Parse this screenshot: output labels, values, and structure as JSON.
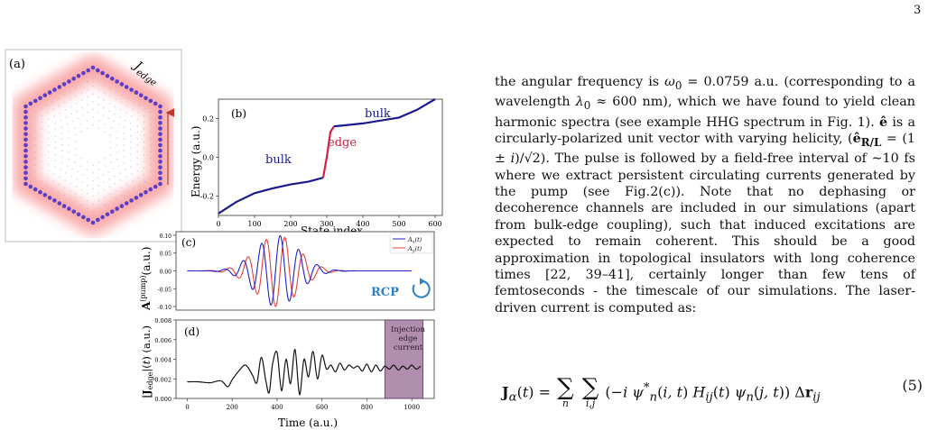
{
  "page_number": "3",
  "figure": {
    "panel_a": {
      "label": "(a)",
      "j_edge": "J",
      "j_edge_sub": "edge"
    },
    "panel_b": {
      "label": "(b)",
      "ylabel": "Energy (a.u.)",
      "xlabel": "State index",
      "yticks": [
        "0.2",
        "0.0",
        "-0.2"
      ],
      "xticks": [
        "0",
        "100",
        "200",
        "300",
        "400",
        "500",
        "600"
      ],
      "bulk_left": "bulk",
      "bulk_right": "bulk",
      "edge": "edge"
    },
    "panel_c": {
      "label": "(c)",
      "ylabel_main": "A",
      "ylabel_sup": "(pump)",
      "ylabel_unit": "(a.u.)",
      "yticks": [
        "0.10",
        "0.05",
        "0.00",
        "-0.05",
        "-0.10"
      ],
      "legend": [
        "A_x(t)",
        "A_y(t)"
      ],
      "rcp": "RCP"
    },
    "panel_d": {
      "label": "(d)",
      "ylabel": "|J_edge|(t) (a.u.)",
      "yticks": [
        "0.008",
        "0.006",
        "0.004",
        "0.002",
        "0.000"
      ],
      "xticks": [
        "0",
        "200",
        "400",
        "600",
        "800",
        "1000"
      ],
      "xlabel": "Time (a.u.)",
      "injection": [
        "Injection",
        "edge",
        "current"
      ]
    }
  },
  "text": {
    "paragraph": "the angular frequency is ω0 = 0.0759 a.u. (corresponding to a wavelength λ0 ≈ 600 nm), which we have found to yield clean harmonic spectra (see example HHG spectrum in Fig. 1). ê is a circularly-polarized unit vector with varying helicity, (ê_R/L = (1 ± i)/√2). The pulse is followed by a field-free interval of ∼10 fs where we extract persistent circulating currents generated by the pump (see Fig.2(c)). Note that no dephasing or decoherence channels are included in our simulations (apart from bulk-edge coupling), such that induced excitations are expected to remain coherent. This should be a good approximation in topological insulators with long coherence times [22, 39–41], certainly longer than few tens of femtoseconds - the timescale of our simulations. The laser-driven current is computed as:"
  },
  "equation": {
    "number": "(5)"
  },
  "chart_data": [
    {
      "type": "line",
      "panel": "b",
      "xlabel": "State index",
      "ylabel": "Energy (a.u.)",
      "xlim": [
        0,
        620
      ],
      "ylim": [
        -0.3,
        0.3
      ],
      "series": [
        {
          "name": "bulk",
          "x": [
            0,
            50,
            100,
            150,
            200,
            250,
            290
          ],
          "y": [
            -0.29,
            -0.23,
            -0.185,
            -0.16,
            -0.14,
            -0.125,
            -0.105
          ]
        },
        {
          "name": "edge",
          "x": [
            290,
            300,
            310,
            320
          ],
          "y": [
            -0.105,
            0.0,
            0.13,
            0.16
          ]
        },
        {
          "name": "bulk",
          "x": [
            320,
            350,
            400,
            450,
            500,
            550,
            600
          ],
          "y": [
            0.16,
            0.165,
            0.175,
            0.19,
            0.205,
            0.245,
            0.3
          ]
        }
      ]
    },
    {
      "type": "line",
      "panel": "c",
      "xlim": [
        -50,
        1100
      ],
      "ylim": [
        -0.11,
        0.11
      ],
      "series": [
        {
          "name": "A_x(t)",
          "color": "#1f1fd0"
        },
        {
          "name": "A_y(t)",
          "color": "#e8413a"
        }
      ],
      "pulse": {
        "center": 400,
        "width": 135,
        "period": 82.8,
        "amplitude": 0.1,
        "end": 800
      }
    },
    {
      "type": "line",
      "panel": "d",
      "xlabel": "Time (a.u.)",
      "xlim": [
        -50,
        1100
      ],
      "ylim": [
        0,
        0.008
      ],
      "x": [
        0,
        50,
        100,
        150,
        180,
        200,
        230,
        260,
        290,
        310,
        330,
        350,
        365,
        380,
        400,
        420,
        440,
        460,
        480,
        500,
        520,
        540,
        560,
        580,
        600,
        620,
        640,
        660,
        680,
        700,
        720,
        740,
        760,
        780,
        800,
        820,
        840,
        860,
        880,
        900,
        920,
        940,
        960,
        980,
        1000,
        1020,
        1040
      ],
      "y": [
        0.0017,
        0.0017,
        0.0016,
        0.0018,
        0.0012,
        0.0019,
        0.0028,
        0.0034,
        0.0024,
        0.0016,
        0.0042,
        0.0018,
        0.0006,
        0.0035,
        0.0047,
        0.0008,
        0.004,
        0.0015,
        0.005,
        0.0004,
        0.004,
        0.0022,
        0.0048,
        0.002,
        0.0044,
        0.003,
        0.0034,
        0.0027,
        0.0036,
        0.0029,
        0.0034,
        0.0031,
        0.0033,
        0.0028,
        0.0035,
        0.0027,
        0.0034,
        0.0028,
        0.0033,
        0.003,
        0.0034,
        0.0029,
        0.0033,
        0.003,
        0.0034,
        0.003,
        0.0033
      ]
    }
  ]
}
